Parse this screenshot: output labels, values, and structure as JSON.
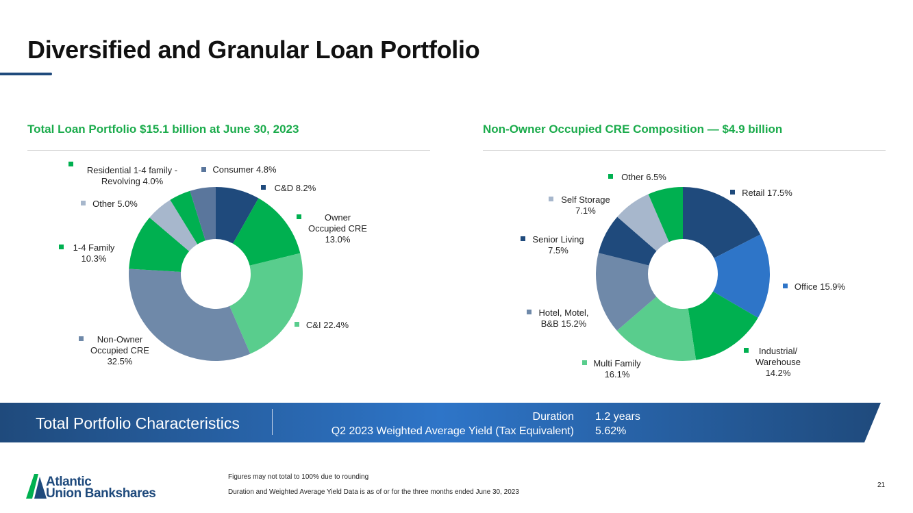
{
  "page": {
    "title": "Diversified and Granular Loan Portfolio",
    "page_number": "21"
  },
  "colors": {
    "navy": "#1f4a7c",
    "green": "#00b050",
    "steel": "#6f89a9",
    "light_green": "#59cd8d",
    "light_steel": "#a7b7cc",
    "slate_blue": "#5a769c",
    "bright_blue": "#2e75c8",
    "heading_green": "#1aab4b"
  },
  "chart_data": [
    {
      "type": "pie",
      "donut": true,
      "title": "Total Loan Portfolio $15.1 billion at June 30, 2023",
      "slices": [
        {
          "name": "C&D",
          "value": 8.2,
          "color": "#1f4a7c",
          "label_lines": [
            "C&D 8.2%"
          ]
        },
        {
          "name": "Owner Occupied CRE",
          "value": 13.0,
          "color": "#00b050",
          "label_lines": [
            "Owner",
            "Occupied CRE",
            "13.0%"
          ]
        },
        {
          "name": "C&I",
          "value": 22.4,
          "color": "#59cd8d",
          "label_lines": [
            "C&I 22.4%"
          ]
        },
        {
          "name": "Non-Owner Occupied CRE",
          "value": 32.5,
          "color": "#6f89a9",
          "label_lines": [
            "Non-Owner",
            "Occupied CRE",
            "32.5%"
          ]
        },
        {
          "name": "1-4 Family",
          "value": 10.3,
          "color": "#00b050",
          "label_lines": [
            "1-4 Family",
            "10.3%"
          ]
        },
        {
          "name": "Other",
          "value": 5.0,
          "color": "#a7b7cc",
          "label_lines": [
            "Other 5.0%"
          ]
        },
        {
          "name": "Residential 1-4 family - Revolving",
          "value": 4.0,
          "color": "#00b050",
          "label_lines": [
            "Residential 1-4 family -",
            "Revolving 4.0%"
          ]
        },
        {
          "name": "Consumer",
          "value": 4.8,
          "color": "#5a769c",
          "label_lines": [
            "Consumer 4.8%"
          ]
        }
      ]
    },
    {
      "type": "pie",
      "donut": true,
      "title": "Non-Owner Occupied CRE Composition — $4.9 billion",
      "slices": [
        {
          "name": "Retail",
          "value": 17.5,
          "color": "#1f4a7c",
          "label_lines": [
            "Retail 17.5%"
          ]
        },
        {
          "name": "Office",
          "value": 15.9,
          "color": "#2e75c8",
          "label_lines": [
            "Office 15.9%"
          ]
        },
        {
          "name": "Industrial/ Warehouse",
          "value": 14.2,
          "color": "#00b050",
          "label_lines": [
            "Industrial/",
            "Warehouse",
            "14.2%"
          ]
        },
        {
          "name": "Multi Family",
          "value": 16.1,
          "color": "#59cd8d",
          "label_lines": [
            "Multi Family",
            "16.1%"
          ]
        },
        {
          "name": "Hotel, Motel, B&B",
          "value": 15.2,
          "color": "#6f89a9",
          "label_lines": [
            "Hotel, Motel,",
            "B&B 15.2%"
          ]
        },
        {
          "name": "Senior Living",
          "value": 7.5,
          "color": "#1f4a7c",
          "label_lines": [
            "Senior Living",
            "7.5%"
          ]
        },
        {
          "name": "Self Storage",
          "value": 7.1,
          "color": "#a7b7cc",
          "label_lines": [
            "Self Storage",
            "7.1%"
          ]
        },
        {
          "name": "Other",
          "value": 6.5,
          "color": "#00b050",
          "label_lines": [
            "Other  6.5%"
          ]
        }
      ]
    }
  ],
  "band": {
    "title": "Total Portfolio Characteristics",
    "rows": [
      {
        "label": "Duration",
        "value": "1.2 years"
      },
      {
        "label": "Q2 2023 Weighted Average Yield (Tax Equivalent)",
        "value": "5.62%"
      }
    ]
  },
  "footer": {
    "logo_line1": "Atlantic",
    "logo_line2": "Union Bankshares",
    "note1": "Figures may not total to 100% due to rounding",
    "note2": "Duration and Weighted Average Yield Data is as of or for the three months ended June 30, 2023"
  }
}
